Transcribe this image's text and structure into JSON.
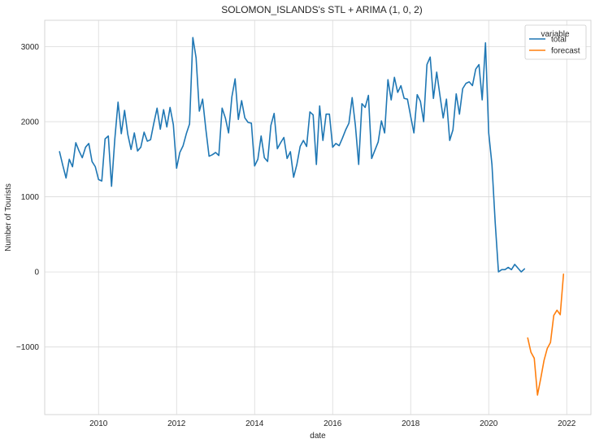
{
  "chart_data": {
    "type": "line",
    "title": "SOLOMON_ISLANDS's STL + ARIMA (1, 0, 2)",
    "xlabel": "date",
    "ylabel": "Number of Tourists",
    "xlim": [
      2008.62,
      2022.62
    ],
    "ylim": [
      -1900,
      3350
    ],
    "x_ticks": [
      2010,
      2012,
      2014,
      2016,
      2018,
      2020,
      2022
    ],
    "x_tick_labels": [
      "2010",
      "2012",
      "2014",
      "2016",
      "2018",
      "2020",
      "2022"
    ],
    "y_ticks": [
      -1000,
      0,
      1000,
      2000,
      3000
    ],
    "y_tick_labels": [
      "−1000",
      "0",
      "1000",
      "2000",
      "3000"
    ],
    "grid": true,
    "legend": {
      "title": "variable",
      "position": "top-right"
    },
    "series": [
      {
        "name": "total",
        "color": "#1f77b4",
        "x": [
          2009.0,
          2009.083,
          2009.167,
          2009.25,
          2009.333,
          2009.417,
          2009.5,
          2009.583,
          2009.667,
          2009.75,
          2009.833,
          2009.917,
          2010.0,
          2010.083,
          2010.167,
          2010.25,
          2010.333,
          2010.417,
          2010.5,
          2010.583,
          2010.667,
          2010.75,
          2010.833,
          2010.917,
          2011.0,
          2011.083,
          2011.167,
          2011.25,
          2011.333,
          2011.417,
          2011.5,
          2011.583,
          2011.667,
          2011.75,
          2011.833,
          2011.917,
          2012.0,
          2012.083,
          2012.167,
          2012.25,
          2012.333,
          2012.417,
          2012.5,
          2012.583,
          2012.667,
          2012.75,
          2012.833,
          2012.917,
          2013.0,
          2013.083,
          2013.167,
          2013.25,
          2013.333,
          2013.417,
          2013.5,
          2013.583,
          2013.667,
          2013.75,
          2013.833,
          2013.917,
          2014.0,
          2014.083,
          2014.167,
          2014.25,
          2014.333,
          2014.417,
          2014.5,
          2014.583,
          2014.667,
          2014.75,
          2014.833,
          2014.917,
          2015.0,
          2015.083,
          2015.167,
          2015.25,
          2015.333,
          2015.417,
          2015.5,
          2015.583,
          2015.667,
          2015.75,
          2015.833,
          2015.917,
          2016.0,
          2016.083,
          2016.167,
          2016.25,
          2016.333,
          2016.417,
          2016.5,
          2016.583,
          2016.667,
          2016.75,
          2016.833,
          2016.917,
          2017.0,
          2017.083,
          2017.167,
          2017.25,
          2017.333,
          2017.417,
          2017.5,
          2017.583,
          2017.667,
          2017.75,
          2017.833,
          2017.917,
          2018.0,
          2018.083,
          2018.167,
          2018.25,
          2018.333,
          2018.417,
          2018.5,
          2018.583,
          2018.667,
          2018.75,
          2018.833,
          2018.917,
          2019.0,
          2019.083,
          2019.167,
          2019.25,
          2019.333,
          2019.417,
          2019.5,
          2019.583,
          2019.667,
          2019.75,
          2019.833,
          2019.917,
          2020.0,
          2020.083,
          2020.167,
          2020.25,
          2020.333,
          2020.417,
          2020.5,
          2020.583,
          2020.667,
          2020.75,
          2020.833,
          2020.917
        ],
        "values": [
          1600,
          1420,
          1250,
          1500,
          1400,
          1720,
          1610,
          1520,
          1660,
          1710,
          1470,
          1400,
          1230,
          1210,
          1770,
          1810,
          1140,
          1770,
          2260,
          1840,
          2150,
          1830,
          1630,
          1850,
          1610,
          1660,
          1860,
          1740,
          1760,
          1980,
          2180,
          1900,
          2160,
          1930,
          2190,
          1960,
          1380,
          1590,
          1680,
          1840,
          1970,
          3120,
          2850,
          2140,
          2300,
          1900,
          1540,
          1560,
          1590,
          1550,
          2180,
          2050,
          1850,
          2330,
          2570,
          2030,
          2280,
          2050,
          1990,
          1980,
          1410,
          1500,
          1810,
          1520,
          1470,
          1950,
          2110,
          1640,
          1720,
          1790,
          1510,
          1600,
          1260,
          1430,
          1670,
          1750,
          1670,
          2130,
          2090,
          1430,
          2210,
          1750,
          2100,
          2100,
          1660,
          1710,
          1680,
          1780,
          1890,
          1980,
          2320,
          1950,
          1430,
          2240,
          2190,
          2350,
          1510,
          1620,
          1730,
          2010,
          1850,
          2560,
          2290,
          2590,
          2390,
          2480,
          2310,
          2300,
          2070,
          1850,
          2360,
          2270,
          2000,
          2760,
          2860,
          2310,
          2660,
          2350,
          2050,
          2300,
          1750,
          1890,
          2370,
          2100,
          2440,
          2510,
          2530,
          2480,
          2700,
          2760,
          2290,
          3050,
          1850,
          1430,
          650,
          0,
          30,
          30,
          60,
          30,
          100,
          50,
          0,
          40
        ]
      },
      {
        "name": "forecast",
        "color": "#ff7f0e",
        "x": [
          2021.0,
          2021.083,
          2021.167,
          2021.25,
          2021.333,
          2021.417,
          2021.5,
          2021.583,
          2021.667,
          2021.75,
          2021.833,
          2021.917
        ],
        "values": [
          -880,
          -1070,
          -1150,
          -1640,
          -1420,
          -1180,
          -1020,
          -940,
          -580,
          -510,
          -570,
          -30
        ]
      }
    ]
  }
}
